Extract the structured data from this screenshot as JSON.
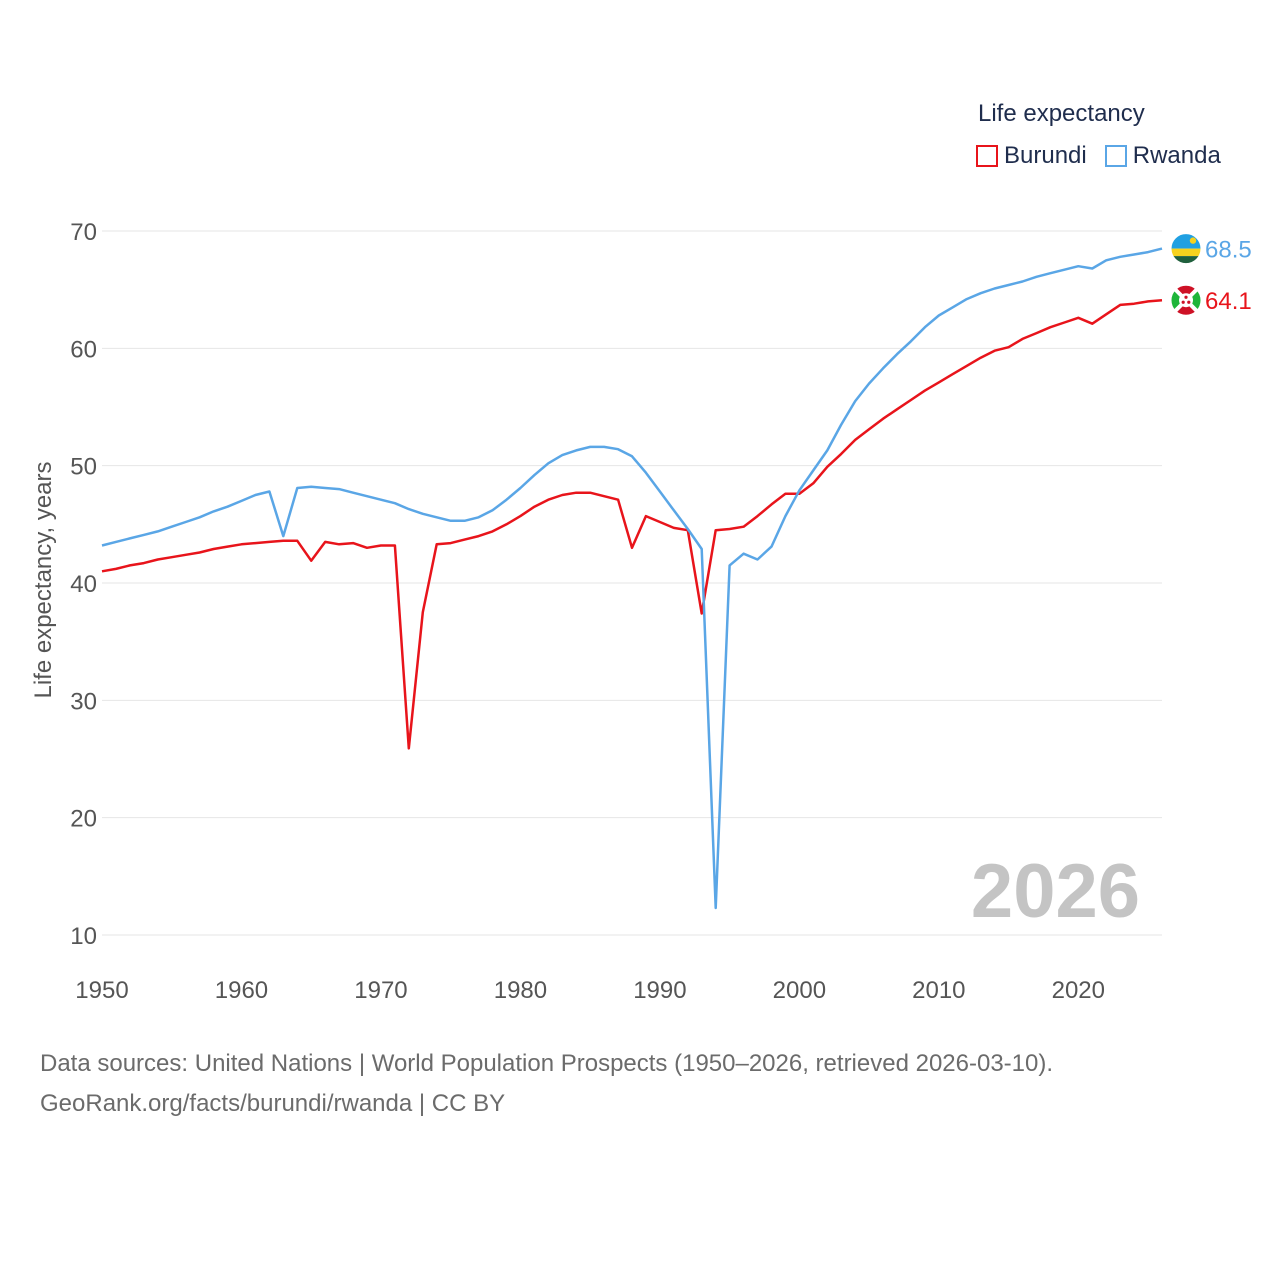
{
  "legend": {
    "title": "Life expectancy",
    "burundi_label": "Burundi",
    "rwanda_label": "Rwanda"
  },
  "watermark_year": "2026",
  "source": {
    "line1": "Data sources: United Nations | World Population Prospects (1950–2026, retrieved 2026-03-10).",
    "line2": "GeoRank.org/facts/burundi/rwanda | CC BY"
  },
  "colors": {
    "burundi": "#e8141b",
    "rwanda": "#5aa6e6",
    "grid": "#e6e6e6",
    "tick": "#555555"
  },
  "chart_data": {
    "type": "line",
    "title": "Life expectancy",
    "xlabel": "",
    "ylabel": "Life expectancy, years",
    "xlim": [
      1950,
      2026
    ],
    "ylim": [
      10,
      70
    ],
    "x_ticks": [
      1950,
      1960,
      1970,
      1980,
      1990,
      2000,
      2010,
      2020
    ],
    "y_ticks": [
      10,
      20,
      30,
      40,
      50,
      60,
      70
    ],
    "grid": true,
    "legend_position": "top-right",
    "x": [
      1950,
      1951,
      1952,
      1953,
      1954,
      1955,
      1956,
      1957,
      1958,
      1959,
      1960,
      1961,
      1962,
      1963,
      1964,
      1965,
      1966,
      1967,
      1968,
      1969,
      1970,
      1971,
      1972,
      1973,
      1974,
      1975,
      1976,
      1977,
      1978,
      1979,
      1980,
      1981,
      1982,
      1983,
      1984,
      1985,
      1986,
      1987,
      1988,
      1989,
      1990,
      1991,
      1992,
      1993,
      1994,
      1995,
      1996,
      1997,
      1998,
      1999,
      2000,
      2001,
      2002,
      2003,
      2004,
      2005,
      2006,
      2007,
      2008,
      2009,
      2010,
      2011,
      2012,
      2013,
      2014,
      2015,
      2016,
      2017,
      2018,
      2019,
      2020,
      2021,
      2022,
      2023,
      2024,
      2025,
      2026
    ],
    "series": [
      {
        "name": "Burundi",
        "color": "#e8141b",
        "end_label": "64.1",
        "values": [
          41.0,
          41.2,
          41.5,
          41.7,
          42.0,
          42.2,
          42.4,
          42.6,
          42.9,
          43.1,
          43.3,
          43.4,
          43.5,
          43.6,
          43.6,
          41.9,
          43.5,
          43.3,
          43.4,
          43.0,
          43.2,
          43.2,
          25.9,
          37.5,
          43.3,
          43.4,
          43.7,
          44.0,
          44.4,
          45.0,
          45.7,
          46.5,
          47.1,
          47.5,
          47.7,
          47.7,
          47.4,
          47.1,
          43.0,
          45.7,
          45.2,
          44.7,
          44.5,
          37.4,
          44.5,
          44.6,
          44.8,
          45.7,
          46.7,
          47.6,
          47.6,
          48.5,
          49.9,
          51.0,
          52.2,
          53.1,
          54.0,
          54.8,
          55.6,
          56.4,
          57.1,
          57.8,
          58.5,
          59.2,
          59.8,
          60.1,
          60.8,
          61.3,
          61.8,
          62.2,
          62.6,
          62.1,
          62.9,
          63.7,
          63.8,
          64.0,
          64.1
        ]
      },
      {
        "name": "Rwanda",
        "color": "#5aa6e6",
        "end_label": "68.5",
        "values": [
          43.2,
          43.5,
          43.8,
          44.1,
          44.4,
          44.8,
          45.2,
          45.6,
          46.1,
          46.5,
          47.0,
          47.5,
          47.8,
          44.0,
          48.1,
          48.2,
          48.1,
          48.0,
          47.7,
          47.4,
          47.1,
          46.8,
          46.3,
          45.9,
          45.6,
          45.3,
          45.3,
          45.6,
          46.2,
          47.1,
          48.1,
          49.2,
          50.2,
          50.9,
          51.3,
          51.6,
          51.6,
          51.4,
          50.8,
          49.4,
          47.8,
          46.2,
          44.6,
          42.9,
          12.3,
          41.5,
          42.5,
          42.0,
          43.1,
          45.7,
          47.9,
          49.6,
          51.3,
          53.5,
          55.5,
          57.0,
          58.3,
          59.5,
          60.6,
          61.8,
          62.8,
          63.5,
          64.2,
          64.7,
          65.1,
          65.4,
          65.7,
          66.1,
          66.4,
          66.7,
          67.0,
          66.8,
          67.5,
          67.8,
          68.0,
          68.2,
          68.5
        ]
      }
    ]
  }
}
